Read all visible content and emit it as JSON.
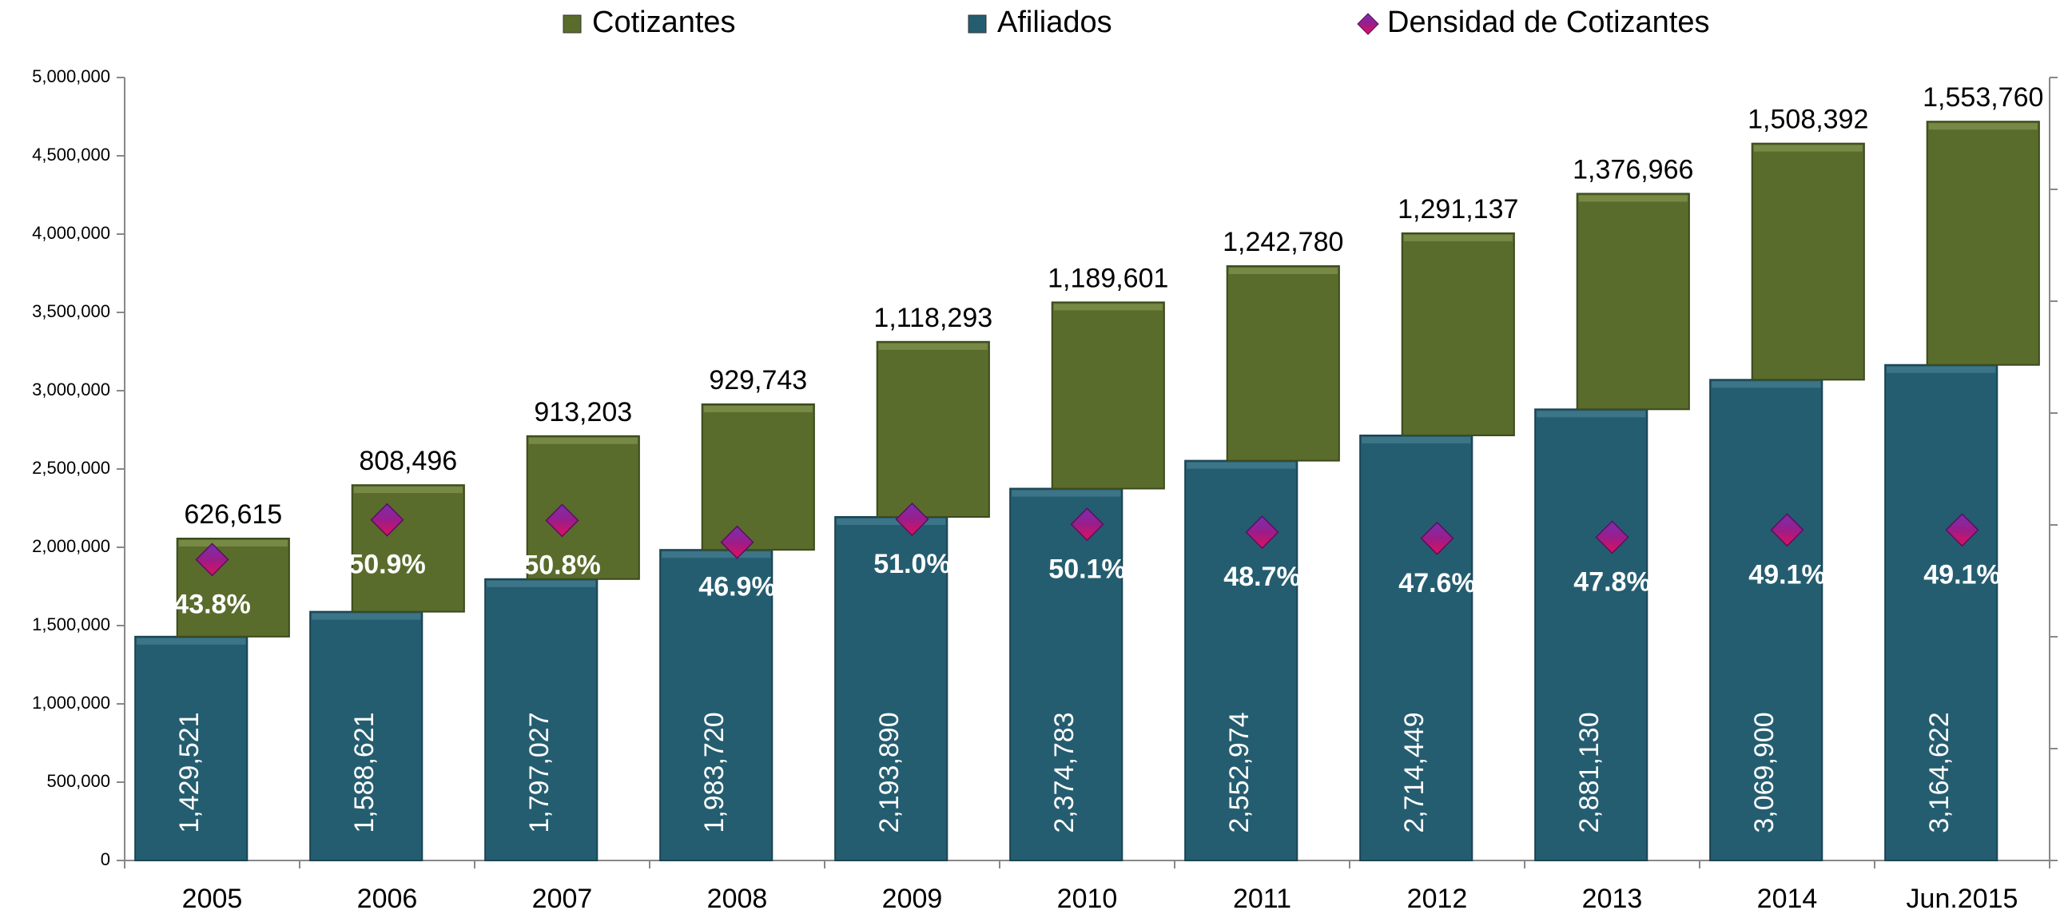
{
  "chart_data": {
    "type": "bar",
    "stacked": true,
    "categories": [
      "2005",
      "2006",
      "2007",
      "2008",
      "2009",
      "2010",
      "2011",
      "2012",
      "2013",
      "2014",
      "Jun.2015"
    ],
    "series": [
      {
        "name": "Cotizantes",
        "color": "#5a6c2c",
        "values": [
          626615,
          808496,
          913203,
          929743,
          1118293,
          1189601,
          1242780,
          1291137,
          1376966,
          1508392,
          1553760
        ],
        "value_labels": [
          "626,615",
          "808,496",
          "913,203",
          "929,743",
          "1,118,293",
          "1,189,601",
          "1,242,780",
          "1,291,137",
          "1,376,966",
          "1,508,392",
          "1,553,760"
        ]
      },
      {
        "name": "Afiliados",
        "color": "#255d70",
        "values": [
          1429521,
          1588621,
          1797027,
          1983720,
          2193890,
          2374783,
          2552974,
          2714449,
          2881130,
          3069900,
          3164622
        ],
        "value_labels": [
          "1,429,521",
          "1,588,621",
          "1,797,027",
          "1,983,720",
          "2,193,890",
          "2,374,783",
          "2,552,974",
          "2,714,449",
          "2,881,130",
          "3,069,900",
          "3,164,622"
        ]
      },
      {
        "name": "Densidad de Cotizantes",
        "color": "#9b1d8a",
        "axis": "y2",
        "values": [
          43.8,
          50.9,
          50.8,
          46.9,
          51.0,
          50.1,
          48.7,
          47.6,
          47.8,
          49.1,
          49.1
        ],
        "value_labels": [
          "43.8%",
          "50.9%",
          "50.8%",
          "46.9%",
          "51.0%",
          "50.1%",
          "48.7%",
          "47.6%",
          "47.8%",
          "49.1%",
          "49.1%"
        ]
      }
    ],
    "ylim": [
      0,
      5000000
    ],
    "yticks": [
      0,
      {
        "value": 500000,
        "label": "500,000"
      },
      {
        "value": 1000000,
        "label": "1,000,000"
      },
      {
        "value": 1500000,
        "label": "1,500,000"
      },
      {
        "value": 2000000,
        "label": "2,000,000"
      },
      {
        "value": 2500000,
        "label": "2,500,000"
      },
      {
        "value": 3000000,
        "label": "3,000,000"
      },
      {
        "value": 3500000,
        "label": "3,500,000"
      },
      {
        "value": 4000000,
        "label": "4,000,000"
      },
      {
        "value": 4500000,
        "label": "4,500,000"
      },
      {
        "value": 5000000,
        "label": "5,000,000"
      }
    ],
    "y2lim": [
      -10,
      130
    ],
    "y2ticks": [
      -10,
      10,
      30,
      50,
      70,
      90,
      110,
      130
    ],
    "legend": "top"
  }
}
